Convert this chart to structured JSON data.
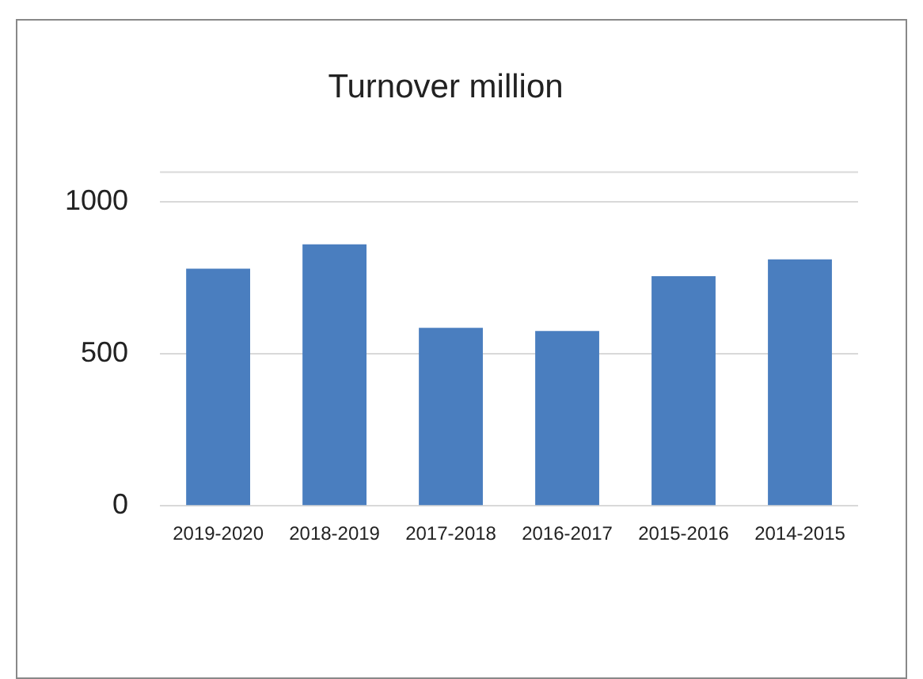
{
  "chart_data": {
    "type": "bar",
    "title": "Turnover million",
    "categories": [
      "2019-2020",
      "2018-2019",
      "2017-2018",
      "2016-2017",
      "2015-2016",
      "2014-2015"
    ],
    "values": [
      780,
      860,
      585,
      575,
      755,
      810
    ],
    "color": "#4a7ebf",
    "ylim": [
      0,
      1100
    ],
    "yticks": [
      0,
      500,
      1000
    ],
    "grid": "y"
  }
}
